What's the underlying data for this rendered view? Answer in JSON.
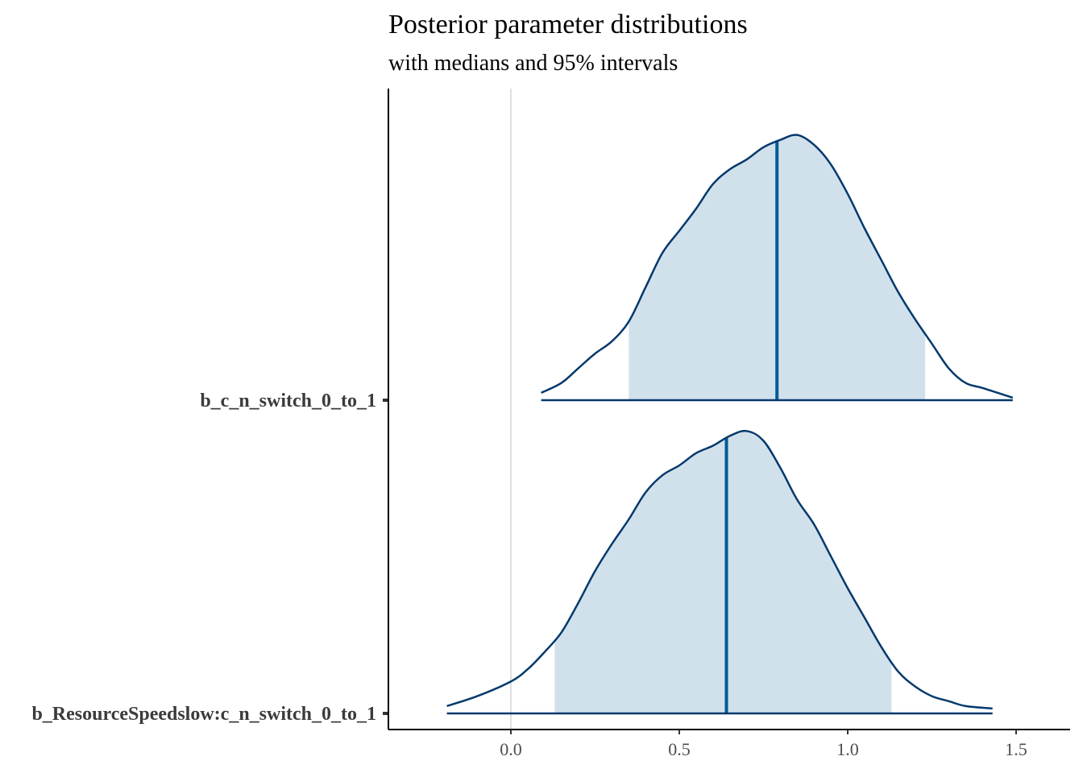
{
  "chart_data": {
    "type": "area",
    "title": "Posterior parameter distributions",
    "subtitle": "with medians and 95% intervals",
    "xlabel": "",
    "ylabel": "",
    "xlim": [
      -0.36,
      1.66
    ],
    "x_ticks": [
      "0.0",
      "0.5",
      "1.0",
      "1.5"
    ],
    "x_tick_values": [
      0.0,
      0.5,
      1.0,
      1.5
    ],
    "reference_line_x": 0.0,
    "grid": false,
    "colors": {
      "outline": "#03396c",
      "interval_fill": "#d1e1ec",
      "median": "#005b96",
      "reference_line": "#e0e0e0",
      "axis": "#000000"
    },
    "parameters": [
      {
        "name": "b_c_n_switch_0_to_1",
        "median": 0.79,
        "interval_95": [
          0.35,
          1.23
        ],
        "range": [
          0.09,
          1.49
        ],
        "density": {
          "x": [
            0.09,
            0.15,
            0.2,
            0.25,
            0.3,
            0.35,
            0.4,
            0.45,
            0.5,
            0.55,
            0.6,
            0.65,
            0.7,
            0.75,
            0.8,
            0.85,
            0.9,
            0.95,
            1.0,
            1.05,
            1.1,
            1.15,
            1.2,
            1.25,
            1.3,
            1.35,
            1.4,
            1.49
          ],
          "y": [
            0.03,
            0.07,
            0.13,
            0.19,
            0.24,
            0.32,
            0.46,
            0.6,
            0.69,
            0.78,
            0.88,
            0.94,
            0.98,
            1.03,
            1.06,
            1.08,
            1.04,
            0.96,
            0.84,
            0.7,
            0.57,
            0.44,
            0.33,
            0.23,
            0.13,
            0.07,
            0.05,
            0.01
          ]
        }
      },
      {
        "name": "b_ResourceSpeedslow:c_n_switch_0_to_1",
        "median": 0.64,
        "interval_95": [
          0.13,
          1.13
        ],
        "range": [
          -0.19,
          1.43
        ],
        "density": {
          "x": [
            -0.19,
            -0.1,
            0.0,
            0.05,
            0.1,
            0.15,
            0.2,
            0.25,
            0.3,
            0.35,
            0.4,
            0.45,
            0.5,
            0.55,
            0.6,
            0.65,
            0.7,
            0.75,
            0.8,
            0.85,
            0.9,
            0.95,
            1.0,
            1.05,
            1.1,
            1.15,
            1.2,
            1.25,
            1.3,
            1.35,
            1.43
          ],
          "y": [
            0.03,
            0.07,
            0.13,
            0.18,
            0.25,
            0.33,
            0.45,
            0.58,
            0.69,
            0.79,
            0.9,
            0.97,
            1.01,
            1.06,
            1.09,
            1.13,
            1.15,
            1.11,
            1.0,
            0.87,
            0.77,
            0.64,
            0.51,
            0.39,
            0.27,
            0.17,
            0.11,
            0.07,
            0.05,
            0.03,
            0.02
          ]
        }
      }
    ]
  }
}
